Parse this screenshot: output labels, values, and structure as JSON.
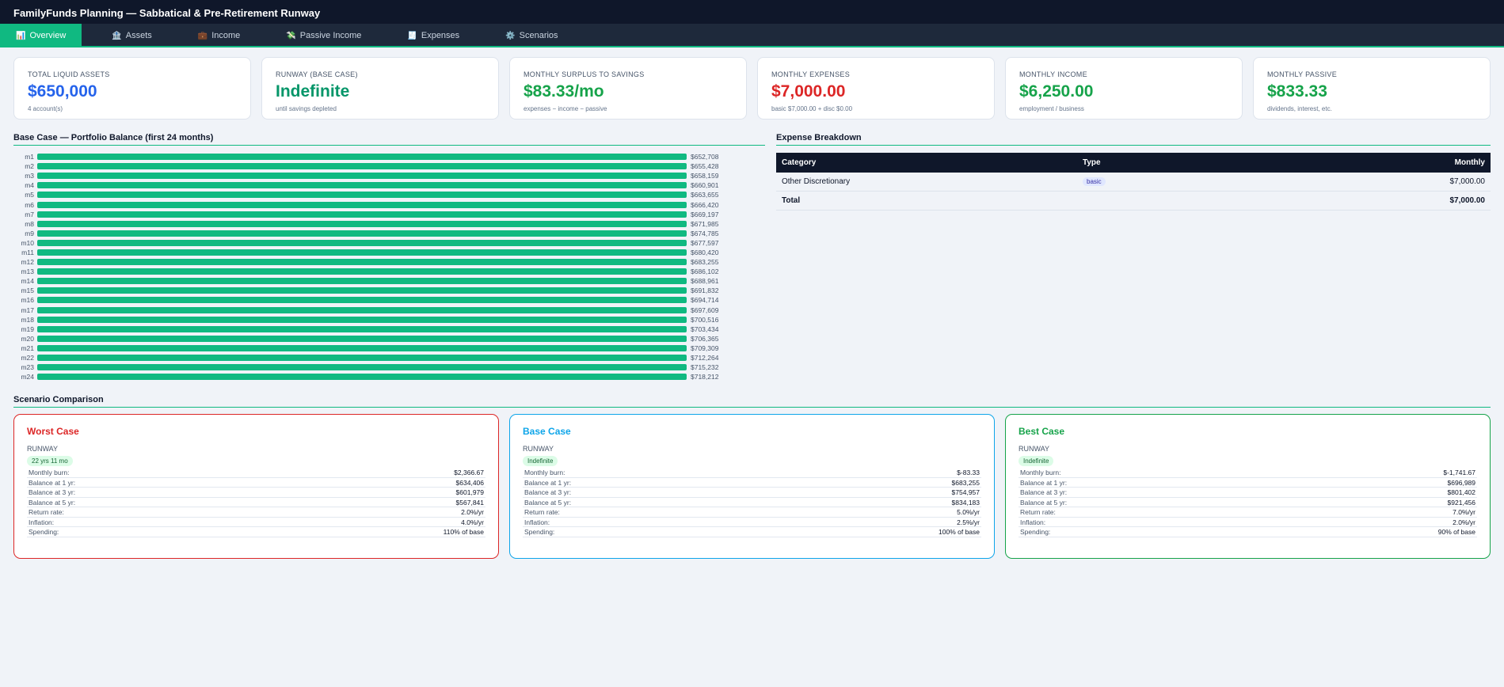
{
  "header": {
    "title": "FamilyFunds Planning — Sabbatical & Pre-Retirement Runway"
  },
  "tabs": [
    {
      "label": "Overview",
      "icon": "📊"
    },
    {
      "label": "Assets",
      "icon": "🏦"
    },
    {
      "label": "Income",
      "icon": "💼"
    },
    {
      "label": "Passive Income",
      "icon": "💸"
    },
    {
      "label": "Expenses",
      "icon": "🧾"
    },
    {
      "label": "Scenarios",
      "icon": "⚙️"
    }
  ],
  "stats": [
    {
      "label": "TOTAL LIQUID ASSETS",
      "value": "$650,000",
      "sub": "4 account(s)",
      "color": "#2563eb"
    },
    {
      "label": "RUNWAY (BASE CASE)",
      "value": "Indefinite",
      "sub": "until savings depleted",
      "color": "#059669"
    },
    {
      "label": "MONTHLY SURPLUS TO SAVINGS",
      "value": "$83.33/mo",
      "sub": "expenses − income − passive",
      "color": "#16a34a"
    },
    {
      "label": "MONTHLY EXPENSES",
      "value": "$7,000.00",
      "sub": "basic $7,000.00 + disc $0.00",
      "color": "#dc2626"
    },
    {
      "label": "MONTHLY INCOME",
      "value": "$6,250.00",
      "sub": "employment / business",
      "color": "#16a34a"
    },
    {
      "label": "MONTHLY PASSIVE",
      "value": "$833.33",
      "sub": "dividends, interest, etc.",
      "color": "#16a34a"
    }
  ],
  "chart_data": {
    "type": "bar",
    "title": "Base Case — Portfolio Balance (first 24 months)",
    "categories": [
      "m1",
      "m2",
      "m3",
      "m4",
      "m5",
      "m6",
      "m7",
      "m8",
      "m9",
      "m10",
      "m11",
      "m12",
      "m13",
      "m14",
      "m15",
      "m16",
      "m17",
      "m18",
      "m19",
      "m20",
      "m21",
      "m22",
      "m23",
      "m24"
    ],
    "values": [
      652708,
      655428,
      658159,
      660901,
      663655,
      666420,
      669197,
      671985,
      674785,
      677597,
      680420,
      683255,
      686102,
      688961,
      691832,
      694714,
      697609,
      700516,
      703434,
      706365,
      709309,
      712264,
      715232,
      718212
    ],
    "labels": [
      "$652,708",
      "$655,428",
      "$658,159",
      "$660,901",
      "$663,655",
      "$666,420",
      "$669,197",
      "$671,985",
      "$674,785",
      "$677,597",
      "$680,420",
      "$683,255",
      "$686,102",
      "$688,961",
      "$691,832",
      "$694,714",
      "$697,609",
      "$700,516",
      "$703,434",
      "$706,365",
      "$709,309",
      "$712,264",
      "$715,232",
      "$718,212"
    ],
    "color": "#10b981"
  },
  "expenses": {
    "title": "Expense Breakdown",
    "headers": [
      "Category",
      "Type",
      "Monthly"
    ],
    "rows": [
      {
        "category": "Other Discretionary",
        "type": "basic",
        "monthly": "$7,000.00"
      }
    ],
    "total_label": "Total",
    "total": "$7,000.00"
  },
  "scenarios": {
    "title": "Scenario Comparison",
    "runway_label": "RUNWAY",
    "row_labels": [
      "Monthly burn:",
      "Balance at 1 yr:",
      "Balance at 3 yr:",
      "Balance at 5 yr:",
      "Return rate:",
      "Inflation:",
      "Spending:"
    ],
    "items": [
      {
        "name": "Worst Case",
        "color": "#dc2626",
        "runway": "22 yrs 11 mo",
        "values": [
          "$2,366.67",
          "$634,406",
          "$601,979",
          "$567,841",
          "2.0%/yr",
          "4.0%/yr",
          "110% of base"
        ]
      },
      {
        "name": "Base Case",
        "color": "#0ea5e9",
        "runway": "Indefinite",
        "values": [
          "$-83.33",
          "$683,255",
          "$754,957",
          "$834,183",
          "5.0%/yr",
          "2.5%/yr",
          "100% of base"
        ]
      },
      {
        "name": "Best Case",
        "color": "#16a34a",
        "runway": "Indefinite",
        "values": [
          "$-1,741.67",
          "$696,989",
          "$801,402",
          "$921,456",
          "7.0%/yr",
          "2.0%/yr",
          "90% of base"
        ]
      }
    ]
  }
}
